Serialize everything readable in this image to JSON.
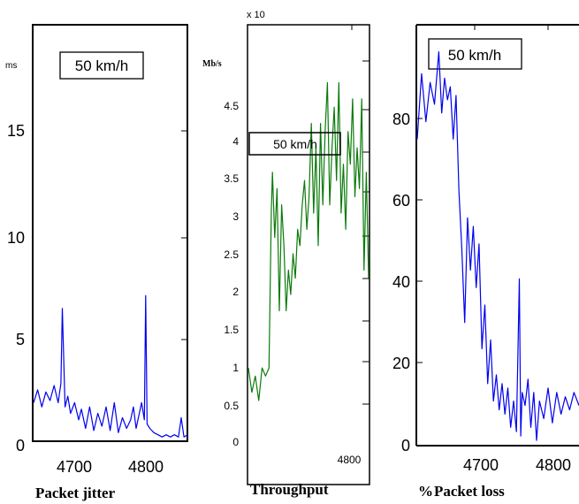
{
  "chart_data": [
    {
      "type": "line",
      "caption": "Packet jitter",
      "unit": "ms",
      "legend_box": "50 km/h",
      "x_ticks": [
        4700,
        4800
      ],
      "y_ticks": [
        0,
        5,
        10,
        15
      ],
      "xlim": [
        4630,
        4855
      ],
      "ylim": [
        0,
        19.4
      ],
      "grid": false,
      "color": "#0000ee",
      "series": [
        {
          "x": [
            4630,
            4636,
            4642,
            4648,
            4654,
            4660,
            4666,
            4670,
            4672,
            4676,
            4680,
            4684,
            4690,
            4696,
            4700,
            4706,
            4712,
            4718,
            4724,
            4730,
            4736,
            4742,
            4748,
            4754,
            4760,
            4766,
            4772,
            4776,
            4780,
            4784,
            4788,
            4792,
            4794,
            4796,
            4800,
            4806,
            4812,
            4818,
            4824,
            4830,
            4836,
            4842,
            4846,
            4850,
            4855
          ],
          "values": [
            1.8,
            2.4,
            1.6,
            2.3,
            1.9,
            2.6,
            1.8,
            2.7,
            6.2,
            1.6,
            2.1,
            1.3,
            1.8,
            1.0,
            1.5,
            0.6,
            1.6,
            0.5,
            1.3,
            0.7,
            1.6,
            0.5,
            1.8,
            0.4,
            1.1,
            0.6,
            1.0,
            1.6,
            0.6,
            1.2,
            1.8,
            1.0,
            6.8,
            0.8,
            0.6,
            0.4,
            0.3,
            0.2,
            0.3,
            0.2,
            0.3,
            0.2,
            1.1,
            0.2,
            0.3
          ]
        }
      ]
    },
    {
      "type": "line",
      "caption": "Throughput",
      "unit": "Mb/s",
      "exponent_label": "x 10",
      "legend_box": "50 km/h",
      "x_ticks": [
        4800
      ],
      "y_ticks": [
        "0",
        "0.5",
        "1",
        "1.5",
        "2",
        "2.5",
        "3",
        "3.5",
        "4",
        "4.5"
      ],
      "xlim": [
        4630,
        4840
      ],
      "ylim": [
        0,
        5.1
      ],
      "grid": false,
      "color": "#0a7a0a",
      "series": [
        {
          "x": [
            4630,
            4636,
            4642,
            4648,
            4654,
            4660,
            4666,
            4670,
            4672,
            4676,
            4680,
            4684,
            4688,
            4692,
            4696,
            4700,
            4704,
            4708,
            4712,
            4716,
            4720,
            4724,
            4728,
            4732,
            4736,
            4740,
            4744,
            4748,
            4752,
            4756,
            4760,
            4764,
            4768,
            4772,
            4776,
            4780,
            4784,
            4788,
            4792,
            4796,
            4800,
            4804,
            4808,
            4812,
            4816,
            4820,
            4824,
            4828,
            4832,
            4836,
            4840
          ],
          "values": [
            0.9,
            0.6,
            0.8,
            0.5,
            0.9,
            0.8,
            0.9,
            2.8,
            3.3,
            2.5,
            3.1,
            1.6,
            2.9,
            2.4,
            1.6,
            2.1,
            1.8,
            2.3,
            2.0,
            2.6,
            2.4,
            2.9,
            3.2,
            2.6,
            3.0,
            3.9,
            2.8,
            3.6,
            2.4,
            3.9,
            2.9,
            3.8,
            4.4,
            2.9,
            3.6,
            4.1,
            3.2,
            4.4,
            2.8,
            3.4,
            2.6,
            3.8,
            3.4,
            4.2,
            3.0,
            3.6,
            3.1,
            4.2,
            2.1,
            3.3,
            2.0
          ]
        }
      ]
    },
    {
      "type": "line",
      "caption": "Packet loss",
      "unit": "%",
      "legend_box": "50 km/h",
      "x_ticks": [
        4700,
        4800
      ],
      "y_ticks": [
        0,
        20,
        40,
        60,
        80
      ],
      "xlim": [
        4630,
        4855
      ],
      "ylim": [
        0,
        96
      ],
      "grid": false,
      "color": "#0000ee",
      "series": [
        {
          "x": [
            4630,
            4636,
            4642,
            4648,
            4654,
            4660,
            4664,
            4668,
            4672,
            4676,
            4680,
            4684,
            4688,
            4692,
            4696,
            4700,
            4704,
            4708,
            4712,
            4716,
            4720,
            4724,
            4728,
            4732,
            4736,
            4740,
            4744,
            4748,
            4752,
            4756,
            4760,
            4764,
            4768,
            4772,
            4774,
            4776,
            4780,
            4784,
            4788,
            4792,
            4796,
            4800,
            4806,
            4812,
            4818,
            4824,
            4830,
            4836,
            4842,
            4848,
            4855
          ],
          "values": [
            70,
            85,
            74,
            83,
            78,
            90,
            76,
            84,
            79,
            82,
            70,
            80,
            58,
            45,
            28,
            52,
            40,
            50,
            36,
            46,
            22,
            32,
            14,
            24,
            10,
            16,
            8,
            14,
            7,
            13,
            4,
            10,
            3,
            38,
            2,
            12,
            9,
            15,
            4,
            12,
            1,
            10,
            6,
            13,
            5,
            12,
            7,
            11,
            8,
            12,
            9
          ]
        }
      ]
    }
  ]
}
